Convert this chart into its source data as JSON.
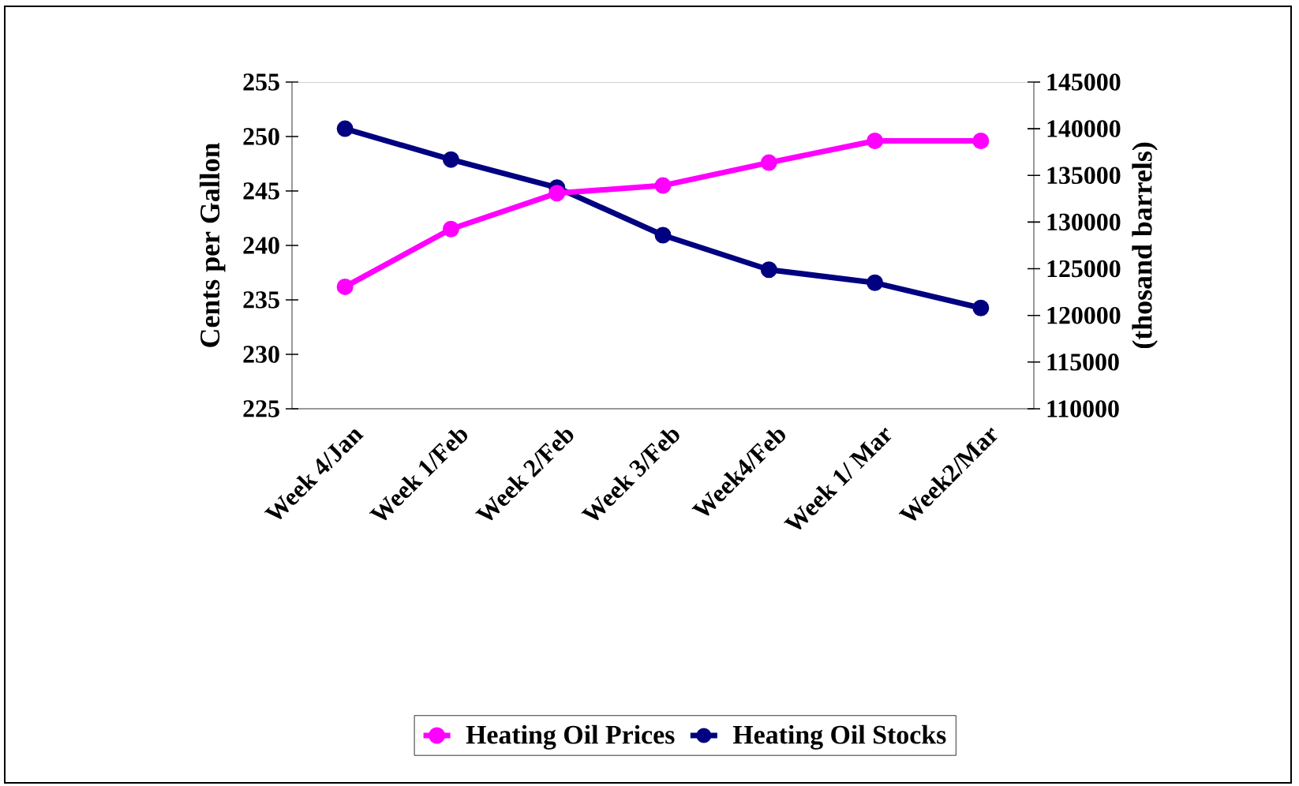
{
  "chart_data": {
    "type": "line",
    "categories": [
      "Week 4/Jan",
      "Week 1/Feb",
      "Week 2/Feb",
      "Week 3/Feb",
      "Week4/Feb",
      "Week 1/ Mar",
      "Week2/Mar"
    ],
    "series": [
      {
        "name": "Heating Oil Prices",
        "color": "#ff00ff",
        "values": [
          236.2,
          241.5,
          244.8,
          245.5,
          247.6,
          249.6,
          249.6
        ]
      },
      {
        "name": "Heating Oil Stocks",
        "color": "#000080",
        "axis": "y2",
        "values": [
          140000,
          136700,
          133700,
          128600,
          124900,
          123500,
          120800
        ]
      }
    ],
    "ylabel": "Cents per Gallon",
    "y2label": "(thosand barrels)",
    "ylim": [
      225,
      255
    ],
    "yticks": [
      225,
      230,
      235,
      240,
      245,
      250,
      255
    ],
    "y2lim": [
      110000,
      145000
    ],
    "y2ticks": [
      110000,
      115000,
      120000,
      125000,
      130000,
      135000,
      140000,
      145000
    ],
    "legend": "bottom",
    "marker": "circle"
  }
}
